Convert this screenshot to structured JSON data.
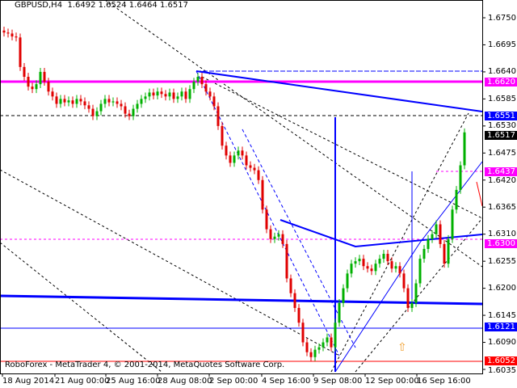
{
  "header": {
    "symbol": "GBPUSD,H4",
    "ohlc": "1.6492 1.6524 1.6464 1.6517"
  },
  "footer": {
    "copyright": "RoboForex - MetaTrader 4, © 2001-2014, MetaQuotes Software Corp."
  },
  "colors": {
    "up": "#00b000",
    "down": "#e00000",
    "magenta": "#ff00ff",
    "blue": "#0000ff",
    "red": "#ff0000",
    "background": "#ffffff"
  },
  "chart_data": {
    "type": "candlestick",
    "title": "GBPUSD,H4",
    "ylim": [
      1.6035,
      1.675
    ],
    "y_ticks": [
      "1.6750",
      "1.6695",
      "1.6640",
      "1.6585",
      "1.6530",
      "1.6475",
      "1.6420",
      "1.6365",
      "1.6310",
      "1.6255",
      "1.6200",
      "1.6145",
      "1.6090",
      "1.6035"
    ],
    "x_ticks": [
      "18 Aug 2014",
      "21 Aug 00:00",
      "25 Aug 16:00",
      "28 Aug 08:00",
      "2 Sep 00:00",
      "4 Sep 16:00",
      "9 Sep 08:00",
      "12 Sep 00:00",
      "16 Sep 16:00"
    ],
    "closes": [
      1.672,
      1.6718,
      1.6712,
      1.671,
      1.665,
      1.663,
      1.661,
      1.6605,
      1.6615,
      1.664,
      1.662,
      1.66,
      1.659,
      1.6575,
      1.6585,
      1.6578,
      1.6582,
      1.6575,
      1.6585,
      1.658,
      1.6572,
      1.6565,
      1.655,
      1.656,
      1.6575,
      1.6585,
      1.6578,
      1.658,
      1.6575,
      1.657,
      1.6555,
      1.655,
      1.6565,
      1.6575,
      1.6585,
      1.659,
      1.6598,
      1.6592,
      1.66,
      1.6595,
      1.659,
      1.6598,
      1.6585,
      1.659,
      1.66,
      1.6585,
      1.6605,
      1.662,
      1.663,
      1.6615,
      1.66,
      1.659,
      1.657,
      1.653,
      1.649,
      1.647,
      1.6455,
      1.647,
      1.648,
      1.647,
      1.645,
      1.6445,
      1.644,
      1.642,
      1.636,
      1.632,
      1.63,
      1.6305,
      1.631,
      1.629,
      1.622,
      1.619,
      1.616,
      1.613,
      1.609,
      1.607,
      1.606,
      1.6075,
      1.608,
      1.609,
      1.61,
      1.608,
      1.613,
      1.617,
      1.62,
      1.623,
      1.625,
      1.6255,
      1.626,
      1.6245,
      1.624,
      1.6235,
      1.625,
      1.626,
      1.627,
      1.6255,
      1.624,
      1.6245,
      1.623,
      1.62,
      1.616,
      1.617,
      1.621,
      1.626,
      1.628,
      1.63,
      1.631,
      1.633,
      1.629,
      1.625,
      1.63,
      1.636,
      1.64,
      1.645,
      1.6517
    ],
    "price_levels": [
      {
        "label": "1.6620",
        "price": 1.662,
        "color": "#ff00ff"
      },
      {
        "label": "1.6551",
        "price": 1.6551,
        "color": "#0000ff"
      },
      {
        "label": "1.6517",
        "price": 1.6517,
        "color": "#000000"
      },
      {
        "label": "1.6437",
        "price": 1.6437,
        "color": "#ff00ff"
      },
      {
        "label": "1.6300",
        "price": 1.63,
        "color": "#ff00ff"
      },
      {
        "label": "1.6121",
        "price": 1.6121,
        "color": "#0000ff"
      },
      {
        "label": "1.6052",
        "price": 1.6052,
        "color": "#ff0000"
      }
    ]
  }
}
